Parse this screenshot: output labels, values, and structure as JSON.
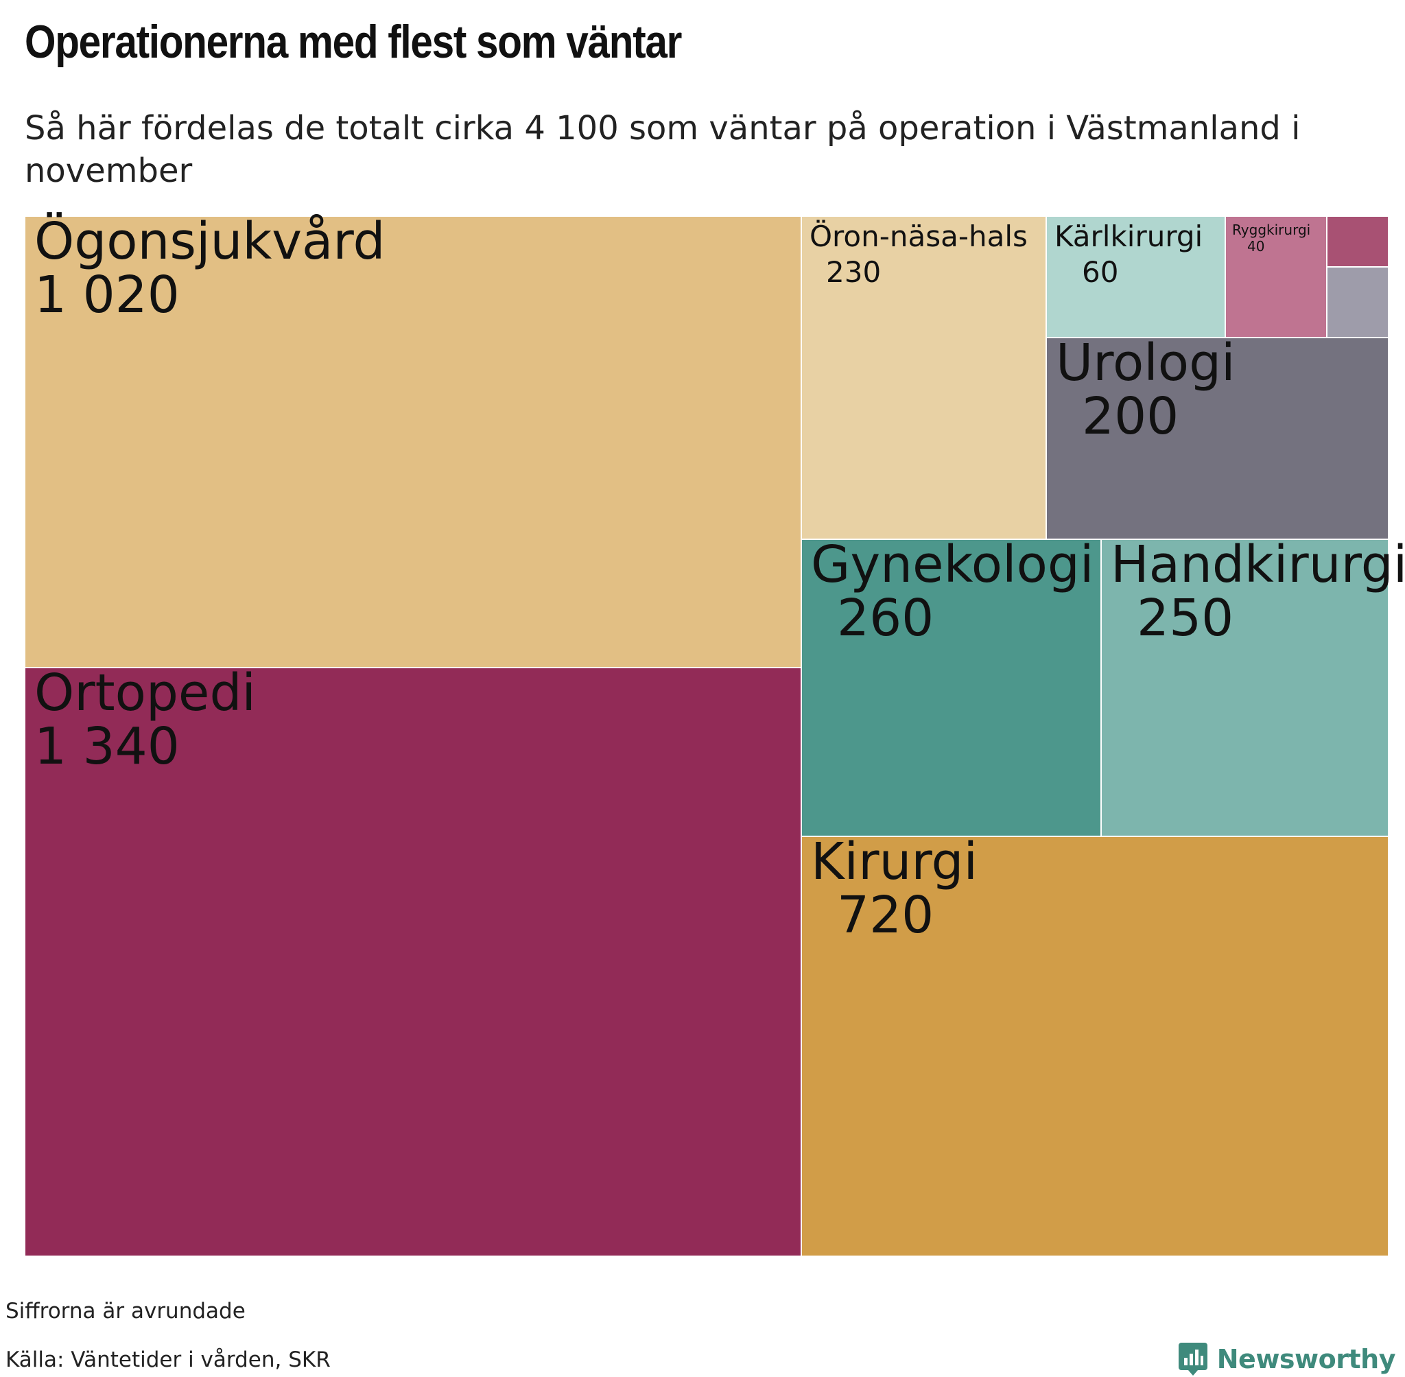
{
  "header": {
    "title": "Operationerna med flest som väntar",
    "subtitle": "Så här fördelas de totalt cirka 4 100 som väntar på operation i Västmanland i november"
  },
  "footer": {
    "note": "Siffrorna är avrundade",
    "source": "Källa: Väntetider i vården, SKR",
    "brand": "Newsworthy"
  },
  "colors": {
    "brand": "#3f8a7c",
    "border": "#ffffff"
  },
  "chart_data": {
    "type": "treemap",
    "title": "Operationerna med flest som väntar",
    "subtitle": "Så här fördelas de totalt cirka 4 100 som väntar på operation i Västmanland i november",
    "total_approx": 4100,
    "items": [
      {
        "name": "Ortopedi",
        "value": 1340,
        "value_label": "1 340",
        "color": "#922b57",
        "label_size": "large"
      },
      {
        "name": "Ögonsjukvård",
        "value": 1020,
        "value_label": "1 020",
        "color": "#e2bf84",
        "label_size": "large"
      },
      {
        "name": "Kirurgi",
        "value": 720,
        "value_label": "720",
        "color": "#d19d48",
        "label_size": "large"
      },
      {
        "name": "Gynekologi",
        "value": 260,
        "value_label": "260",
        "color": "#4d978c",
        "label_size": "large"
      },
      {
        "name": "Handkirurgi",
        "value": 250,
        "value_label": "250",
        "color": "#7db5ad",
        "label_size": "large"
      },
      {
        "name": "Öron-näsa-hals",
        "value": 230,
        "value_label": "230",
        "color": "#e8d1a4",
        "label_size": "medium"
      },
      {
        "name": "Urologi",
        "value": 200,
        "value_label": "200",
        "color": "#74727f",
        "label_size": "large"
      },
      {
        "name": "Kärlkirurgi",
        "value": 60,
        "value_label": "60",
        "color": "#b0d6cf",
        "label_size": "medium"
      },
      {
        "name": "Ryggkirurgi",
        "value": 40,
        "value_label": "40",
        "color": "#bf7491",
        "label_size": "small"
      },
      {
        "name": "",
        "value": null,
        "value_label": "",
        "color": "#a85173",
        "label_size": "none"
      },
      {
        "name": "",
        "value": null,
        "value_label": "",
        "color": "#9e9caa",
        "label_size": "none"
      }
    ]
  }
}
